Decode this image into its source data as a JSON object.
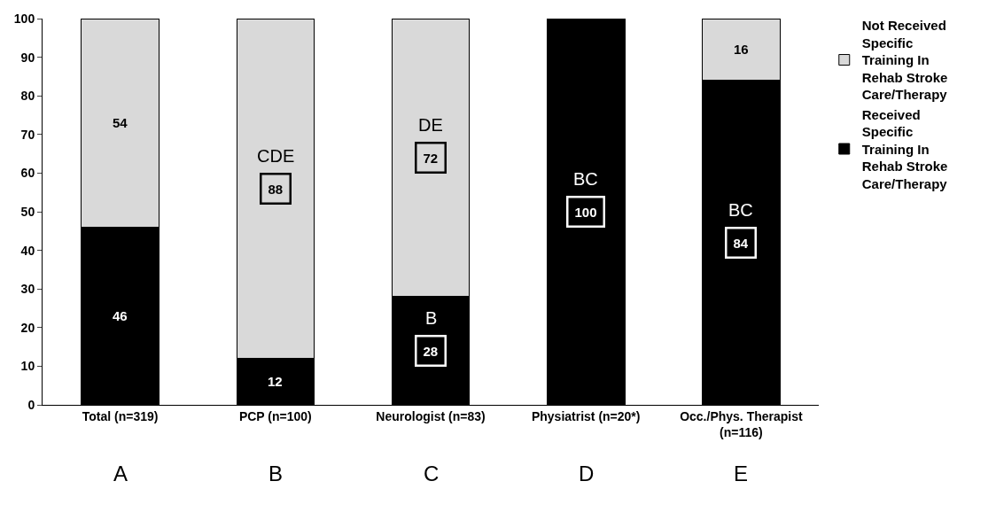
{
  "chart_data": {
    "type": "bar",
    "stacked": true,
    "categories": [
      "Total (n=319)",
      "PCP (n=100)",
      "Neurologist (n=83)",
      "Physiatrist (n=20*)",
      "Occ./Phys. Therapist (n=116)"
    ],
    "series": [
      {
        "name": "Received Specific Training In Rehab Stroke Care/Therapy",
        "color": "#000000",
        "values": [
          46,
          12,
          28,
          100,
          84
        ]
      },
      {
        "name": "Not Received Specific Training In Rehab Stroke Care/Therapy",
        "color": "#d9d9d9",
        "values": [
          54,
          88,
          72,
          null,
          16
        ]
      }
    ],
    "ylim": [
      0,
      100
    ],
    "yticks": [
      0,
      10,
      20,
      30,
      40,
      50,
      60,
      70,
      80,
      90,
      100
    ],
    "grid": false,
    "legend": "top right",
    "data_labels": true,
    "annotations": [
      "A",
      "B",
      "C",
      "D",
      "E",
      {
        "text": "CDE",
        "x": "PCP (n=100)",
        "y": 56
      },
      {
        "text": "DE",
        "x": "Neurologist (n=83)",
        "y": 64
      },
      {
        "text": "B",
        "x": "Neurologist (n=83)",
        "y": 14
      },
      {
        "text": "BC",
        "x": "Physiatrist (n=20*)",
        "y": 50
      },
      {
        "text": "BC",
        "x": "Occ./Phys. Therapist (n=116)",
        "y": 42
      }
    ]
  }
}
